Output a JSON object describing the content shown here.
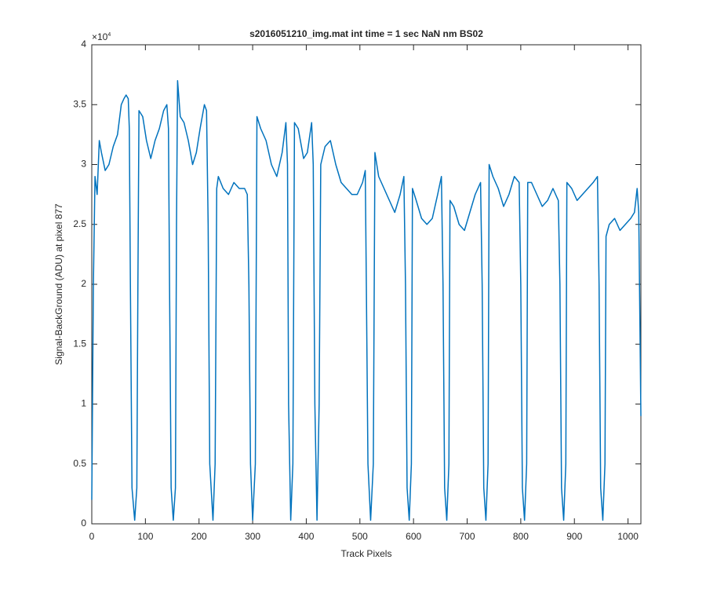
{
  "chart_data": {
    "type": "line",
    "title": "s2016051210_img.mat int time = 1 sec  NaN nm BS02",
    "xlabel": "Track Pixels",
    "ylabel": "Signal-BackGround (ADU) at pixel 877",
    "y_multiplier": {
      "base": "×10",
      "exponent": "4"
    },
    "color": "#0072bd",
    "xlim": [
      0,
      1024
    ],
    "xticks": [
      0,
      100,
      200,
      300,
      400,
      500,
      600,
      700,
      800,
      900,
      1000
    ],
    "ylim": [
      0,
      4
    ],
    "yticks": [
      0,
      0.5,
      1,
      1.5,
      2,
      2.5,
      3,
      3.5,
      4
    ],
    "x": [
      0,
      3,
      6,
      10,
      14,
      18,
      25,
      32,
      40,
      48,
      55,
      60,
      64,
      68,
      70,
      72,
      75,
      80,
      84,
      86,
      88,
      95,
      102,
      110,
      118,
      126,
      134,
      140,
      143,
      145,
      148,
      152,
      156,
      158,
      160,
      165,
      172,
      180,
      188,
      195,
      202,
      210,
      214,
      217,
      220,
      226,
      230,
      233,
      236,
      245,
      255,
      265,
      275,
      285,
      290,
      293,
      296,
      300,
      305,
      308,
      315,
      325,
      335,
      345,
      355,
      362,
      365,
      367,
      371,
      375,
      378,
      385,
      395,
      402,
      410,
      413,
      416,
      420,
      424,
      427,
      435,
      445,
      455,
      465,
      475,
      485,
      495,
      505,
      510,
      512,
      515,
      520,
      525,
      528,
      535,
      545,
      555,
      565,
      575,
      582,
      585,
      588,
      592,
      596,
      598,
      605,
      615,
      625,
      635,
      645,
      652,
      655,
      658,
      662,
      666,
      668,
      675,
      685,
      695,
      705,
      715,
      725,
      728,
      731,
      735,
      739,
      741,
      748,
      758,
      768,
      778,
      788,
      797,
      800,
      803,
      807,
      811,
      813,
      820,
      830,
      840,
      850,
      860,
      870,
      873,
      876,
      880,
      884,
      886,
      895,
      905,
      915,
      925,
      935,
      943,
      946,
      949,
      953,
      957,
      959,
      965,
      975,
      985,
      995,
      1005,
      1012,
      1017,
      1020,
      1024
    ],
    "values": [
      0.2,
      2.0,
      2.9,
      2.75,
      3.2,
      3.1,
      2.95,
      3.0,
      3.15,
      3.25,
      3.5,
      3.55,
      3.58,
      3.55,
      3.3,
      2.0,
      0.3,
      0.03,
      0.3,
      2.0,
      3.45,
      3.4,
      3.2,
      3.05,
      3.2,
      3.3,
      3.45,
      3.5,
      3.3,
      2.0,
      0.3,
      0.03,
      0.3,
      2.5,
      3.7,
      3.4,
      3.35,
      3.2,
      3.0,
      3.1,
      3.3,
      3.5,
      3.45,
      2.5,
      0.5,
      0.03,
      0.5,
      2.8,
      2.9,
      2.8,
      2.75,
      2.85,
      2.8,
      2.8,
      2.75,
      2.0,
      0.5,
      0.03,
      0.5,
      3.4,
      3.3,
      3.2,
      3.0,
      2.9,
      3.1,
      3.35,
      3.0,
      1.0,
      0.03,
      0.5,
      3.35,
      3.3,
      3.05,
      3.1,
      3.35,
      3.0,
      1.0,
      0.03,
      1.0,
      3.0,
      3.15,
      3.2,
      3.0,
      2.85,
      2.8,
      2.75,
      2.75,
      2.85,
      2.95,
      2.0,
      0.5,
      0.03,
      0.5,
      3.1,
      2.9,
      2.8,
      2.7,
      2.6,
      2.75,
      2.9,
      2.0,
      0.3,
      0.03,
      0.5,
      2.8,
      2.7,
      2.55,
      2.5,
      2.55,
      2.75,
      2.9,
      2.0,
      0.3,
      0.03,
      0.5,
      2.7,
      2.65,
      2.5,
      2.45,
      2.6,
      2.75,
      2.85,
      2.0,
      0.3,
      0.03,
      0.5,
      3.0,
      2.9,
      2.8,
      2.65,
      2.75,
      2.9,
      2.85,
      2.0,
      0.3,
      0.03,
      0.5,
      2.85,
      2.85,
      2.75,
      2.65,
      2.7,
      2.8,
      2.7,
      2.0,
      0.3,
      0.03,
      0.5,
      2.85,
      2.8,
      2.7,
      2.75,
      2.8,
      2.85,
      2.9,
      2.0,
      0.3,
      0.03,
      0.5,
      2.4,
      2.5,
      2.55,
      2.45,
      2.5,
      2.55,
      2.6,
      2.8,
      2.6,
      0.9
    ]
  }
}
